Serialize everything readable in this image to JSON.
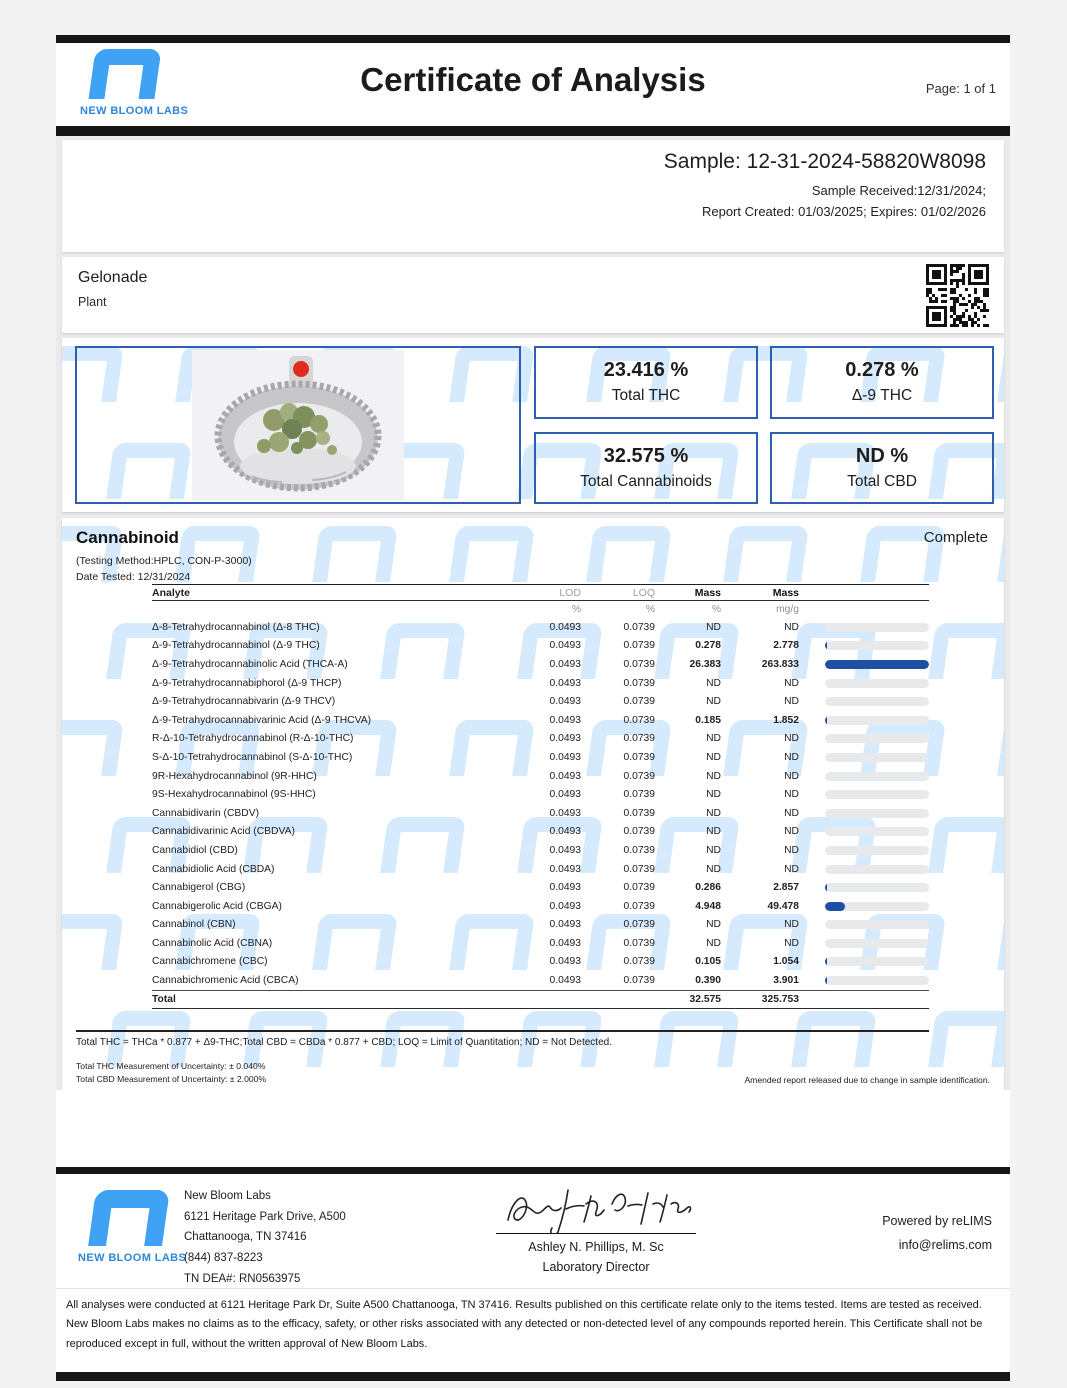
{
  "header": {
    "brand": "NEW BLOOM LABS",
    "title": "Certificate of Analysis",
    "page": "Page: 1 of 1"
  },
  "sample": {
    "id": "Sample: 12-31-2024-58820W8098",
    "received": "Sample Received:12/31/2024;",
    "report": "Report Created: 01/03/2025; Expires: 01/02/2026"
  },
  "product": {
    "name": "Gelonade",
    "type": "Plant"
  },
  "summary": [
    {
      "value": "23.416 %",
      "label": "Total THC"
    },
    {
      "value": "0.278 %",
      "label": "Δ-9 THC"
    },
    {
      "value": "32.575 %",
      "label": "Total Cannabinoids"
    },
    {
      "value": "ND %",
      "label": "Total CBD"
    }
  ],
  "cannabinoid": {
    "title": "Cannabinoid",
    "status": "Complete",
    "method": "(Testing Method:HPLC, CON-P-3000)",
    "date_tested": "Date Tested: 12/31/2024",
    "table": {
      "headers": {
        "analyte": "Analyte",
        "lod": "LOD",
        "loq": "LOQ",
        "mass_pct": "Mass",
        "mass_mgg": "Mass"
      },
      "units": {
        "lod": "%",
        "loq": "%",
        "mass_pct": "%",
        "mass_mgg": "mg/g"
      },
      "rows": [
        {
          "analyte": "Δ-8-Tetrahydrocannabinol (Δ-8 THC)",
          "lod": "0.0493",
          "loq": "0.0739",
          "mass_pct": "ND",
          "mass_mgg": "ND"
        },
        {
          "analyte": "Δ-9-Tetrahydrocannabinol (Δ-9 THC)",
          "lod": "0.0493",
          "loq": "0.0739",
          "mass_pct": "0.278",
          "mass_mgg": "2.778"
        },
        {
          "analyte": "Δ-9-Tetrahydrocannabinolic Acid (THCA-A)",
          "lod": "0.0493",
          "loq": "0.0739",
          "mass_pct": "26.383",
          "mass_mgg": "263.833"
        },
        {
          "analyte": "Δ-9-Tetrahydrocannabiphorol (Δ-9 THCP)",
          "lod": "0.0493",
          "loq": "0.0739",
          "mass_pct": "ND",
          "mass_mgg": "ND"
        },
        {
          "analyte": "Δ-9-Tetrahydrocannabivarin (Δ-9 THCV)",
          "lod": "0.0493",
          "loq": "0.0739",
          "mass_pct": "ND",
          "mass_mgg": "ND"
        },
        {
          "analyte": "Δ-9-Tetrahydrocannabivarinic Acid (Δ-9 THCVA)",
          "lod": "0.0493",
          "loq": "0.0739",
          "mass_pct": "0.185",
          "mass_mgg": "1.852"
        },
        {
          "analyte": "R-Δ-10-Tetrahydrocannabinol (R-Δ-10-THC)",
          "lod": "0.0493",
          "loq": "0.0739",
          "mass_pct": "ND",
          "mass_mgg": "ND"
        },
        {
          "analyte": "S-Δ-10-Tetrahydrocannabinol (S-Δ-10-THC)",
          "lod": "0.0493",
          "loq": "0.0739",
          "mass_pct": "ND",
          "mass_mgg": "ND"
        },
        {
          "analyte": "9R-Hexahydrocannabinol (9R-HHC)",
          "lod": "0.0493",
          "loq": "0.0739",
          "mass_pct": "ND",
          "mass_mgg": "ND"
        },
        {
          "analyte": "9S-Hexahydrocannabinol (9S-HHC)",
          "lod": "0.0493",
          "loq": "0.0739",
          "mass_pct": "ND",
          "mass_mgg": "ND"
        },
        {
          "analyte": "Cannabidivarin (CBDV)",
          "lod": "0.0493",
          "loq": "0.0739",
          "mass_pct": "ND",
          "mass_mgg": "ND"
        },
        {
          "analyte": "Cannabidivarinic Acid (CBDVA)",
          "lod": "0.0493",
          "loq": "0.0739",
          "mass_pct": "ND",
          "mass_mgg": "ND"
        },
        {
          "analyte": "Cannabidiol (CBD)",
          "lod": "0.0493",
          "loq": "0.0739",
          "mass_pct": "ND",
          "mass_mgg": "ND"
        },
        {
          "analyte": "Cannabidiolic Acid (CBDA)",
          "lod": "0.0493",
          "loq": "0.0739",
          "mass_pct": "ND",
          "mass_mgg": "ND"
        },
        {
          "analyte": "Cannabigerol (CBG)",
          "lod": "0.0493",
          "loq": "0.0739",
          "mass_pct": "0.286",
          "mass_mgg": "2.857"
        },
        {
          "analyte": "Cannabigerolic Acid (CBGA)",
          "lod": "0.0493",
          "loq": "0.0739",
          "mass_pct": "4.948",
          "mass_mgg": "49.478"
        },
        {
          "analyte": "Cannabinol (CBN)",
          "lod": "0.0493",
          "loq": "0.0739",
          "mass_pct": "ND",
          "mass_mgg": "ND"
        },
        {
          "analyte": "Cannabinolic Acid (CBNA)",
          "lod": "0.0493",
          "loq": "0.0739",
          "mass_pct": "ND",
          "mass_mgg": "ND"
        },
        {
          "analyte": "Cannabichromene (CBC)",
          "lod": "0.0493",
          "loq": "0.0739",
          "mass_pct": "0.105",
          "mass_mgg": "1.054"
        },
        {
          "analyte": "Cannabichromenic Acid (CBCA)",
          "lod": "0.0493",
          "loq": "0.0739",
          "mass_pct": "0.390",
          "mass_mgg": "3.901"
        }
      ],
      "total": {
        "label": "Total",
        "mass_pct": "32.575",
        "mass_mgg": "325.753"
      }
    },
    "footnotes": {
      "formula": "Total THC = THCa * 0.877 + Δ9-THC;Total CBD = CBDa * 0.877 + CBD; LOQ = Limit of Quantitation; ND = Not Detected.",
      "mou_thc": "Total THC Measurement of Uncertainty: ± 0.040%",
      "mou_cbd": "Total CBD Measurement of Uncertainty: ± 2.000%",
      "amended": "Amended report released due to change in sample identification."
    }
  },
  "footer": {
    "brand": "NEW BLOOM LABS",
    "lab_lines": [
      "New Bloom Labs",
      "6121 Heritage Park Drive, A500",
      "Chattanooga, TN 37416",
      "(844) 837-8223",
      "TN DEA#: RN0563975"
    ],
    "signer_name": "Ashley N. Phillips, M. Sc",
    "signer_title": "Laboratory Director",
    "powered_by": "Powered by reLIMS",
    "email": "info@relims.com"
  },
  "disclaimer": "All analyses were conducted at 6121 Heritage Park Dr, Suite A500 Chattanooga, TN 37416. Results published on this certificate relate only to the items tested. Items are tested as received. New Bloom Labs makes no claims as to the efficacy, safety, or other risks associated with any detected or non-detected level of any compounds reported herein. This Certificate shall not be reproduced except in full, without the written approval of New Bloom Labs.",
  "colors": {
    "brand_blue": "#3fa2f5",
    "box_border": "#2d5fb0",
    "bar_fill": "#1d4fa3",
    "watermark": "#d5eafc"
  }
}
